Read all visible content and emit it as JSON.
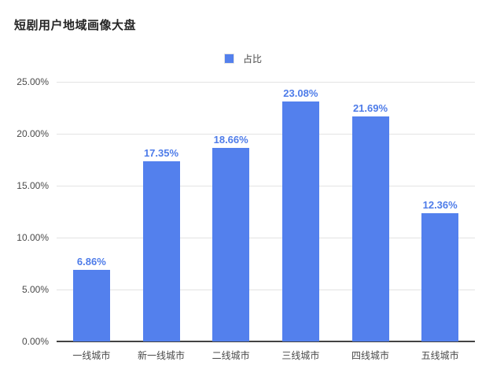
{
  "title": "短剧用户地域画像大盘",
  "legend": {
    "label": "占比"
  },
  "colors": {
    "bar": "#5380ED",
    "value_label": "#4E7CE9",
    "grid": "#E3E3E3",
    "axis_line": "#434343",
    "axis_text": "#4A4A4A",
    "title_text": "#262626",
    "background": "#FFFFFF"
  },
  "chart_data": {
    "type": "bar",
    "title": "短剧用户地域画像大盘",
    "series_name": "占比",
    "categories": [
      "一线城市",
      "新一线城市",
      "二线城市",
      "三线城市",
      "四线城市",
      "五线城市"
    ],
    "values": [
      6.86,
      17.35,
      18.66,
      23.08,
      21.69,
      12.36
    ],
    "value_labels": [
      "6.86%",
      "17.35%",
      "18.66%",
      "23.08%",
      "21.69%",
      "12.36%"
    ],
    "xlabel": "",
    "ylabel": "",
    "ylim": [
      0,
      25
    ],
    "ytick_step": 5,
    "ytick_labels": [
      "0.00%",
      "5.00%",
      "10.00%",
      "15.00%",
      "20.00%",
      "25.00%"
    ],
    "grid": true,
    "legend_position": "top-center"
  }
}
